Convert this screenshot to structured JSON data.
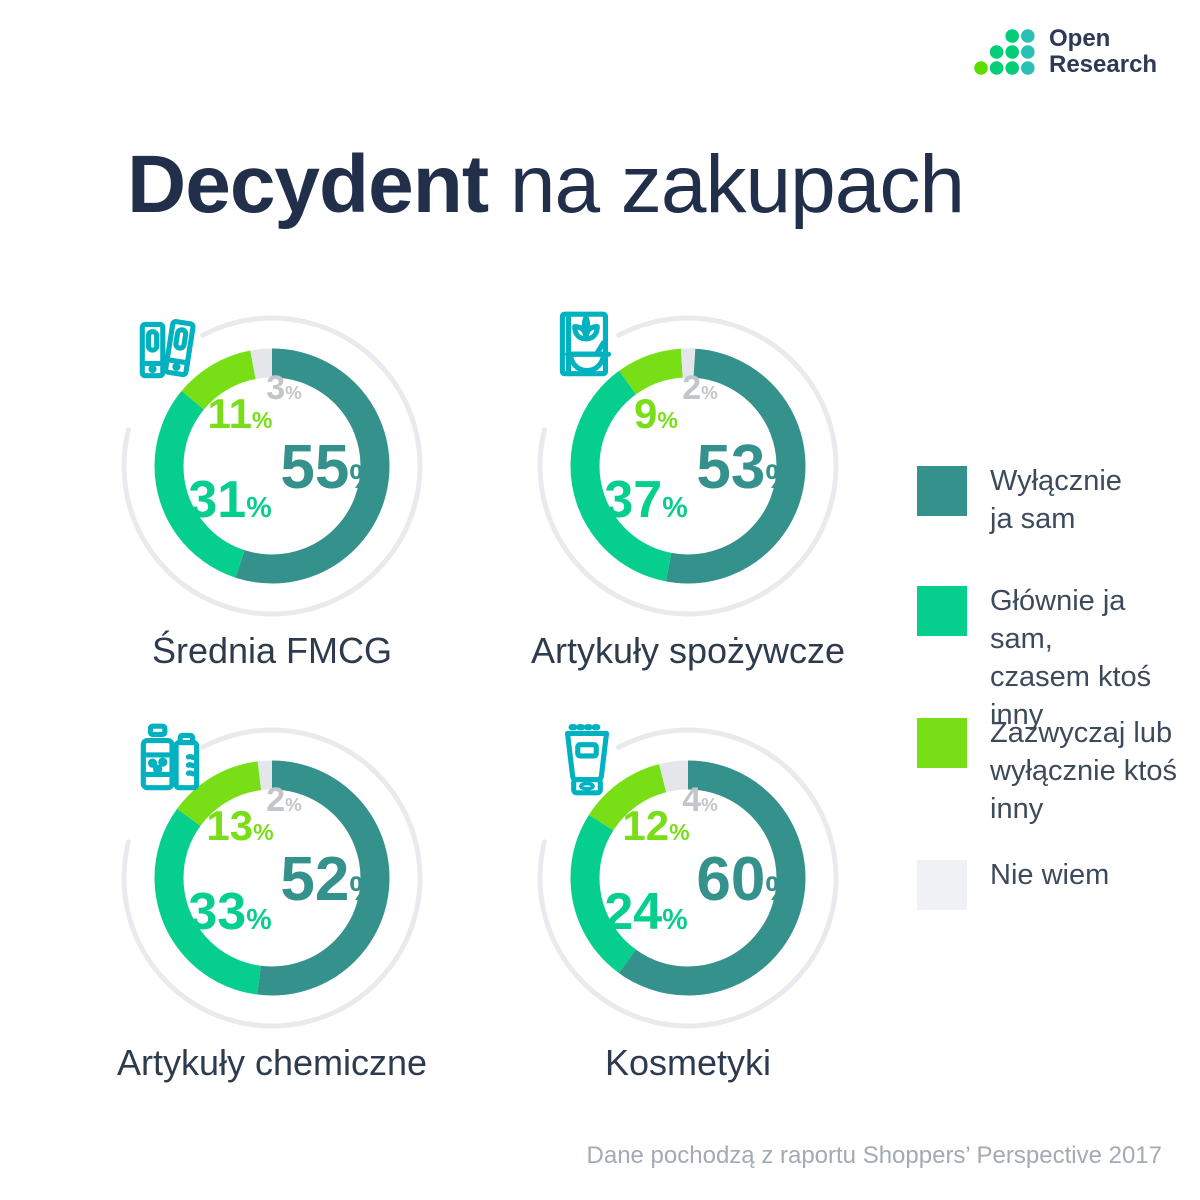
{
  "logo": {
    "name_line1": "Open",
    "name_line2": "Research",
    "dot_colors": {
      "lime": "#5bdd00",
      "green": "#00cf78",
      "teal": "#29c1b5"
    }
  },
  "title": {
    "bold": "Decydent",
    "light": " na zakupach"
  },
  "footer": {
    "source": "Dane pochodzą z raportu Shoppers’ Perspective 2017"
  },
  "colors": {
    "segment_teal": "#35918c",
    "segment_green": "#06cf8d",
    "segment_lime": "#78df17",
    "segment_gray": "#e4e6e9",
    "legend_gray": "#f0f1f4",
    "gray_label_text": "#c2c5ca",
    "icon_teal": "#00b1bf",
    "decorative_ring": "#e8eaed"
  },
  "legend": {
    "items": [
      {
        "label": "Wyłącznie\nja sam",
        "color_key": "segment_teal"
      },
      {
        "label": "Głównie ja sam,\nczasem ktoś\ninny",
        "color_key": "segment_green"
      },
      {
        "label": "Zazwyczaj lub\nwyłącznie ktoś\ninny",
        "color_key": "segment_lime"
      },
      {
        "label": "Nie wiem",
        "color_key": "legend_gray"
      }
    ]
  },
  "chart_data": [
    {
      "type": "pie",
      "title": "Średnia FMCG",
      "icon": "binders-icon",
      "categories": [
        "Wyłącznie ja sam",
        "Głównie ja sam, czasem ktoś inny",
        "Zazwyczaj lub wyłącznie ktoś inny",
        "Nie wiem"
      ],
      "values": [
        55,
        31,
        11,
        3
      ],
      "unit": "%"
    },
    {
      "type": "pie",
      "title": "Artykuły spożywcze",
      "icon": "cereal-icon",
      "categories": [
        "Wyłącznie ja sam",
        "Głównie ja sam, czasem ktoś inny",
        "Zazwyczaj lub wyłącznie ktoś inny",
        "Nie wiem"
      ],
      "values": [
        53,
        37,
        9,
        2
      ],
      "unit": "%"
    },
    {
      "type": "pie",
      "title": "Artykuły chemiczne",
      "icon": "bottles-icon",
      "categories": [
        "Wyłącznie ja sam",
        "Głównie ja sam, czasem ktoś inny",
        "Zazwyczaj lub wyłącznie ktoś inny",
        "Nie wiem"
      ],
      "values": [
        52,
        33,
        13,
        2
      ],
      "unit": "%"
    },
    {
      "type": "pie",
      "title": "Kosmetyki",
      "icon": "cosmetic-tube-icon",
      "categories": [
        "Wyłącznie ja sam",
        "Głównie ja sam, czasem ktoś inny",
        "Zazwyczaj lub wyłącznie ktoś inny",
        "Nie wiem"
      ],
      "values": [
        60,
        24,
        12,
        4
      ],
      "unit": "%"
    }
  ]
}
